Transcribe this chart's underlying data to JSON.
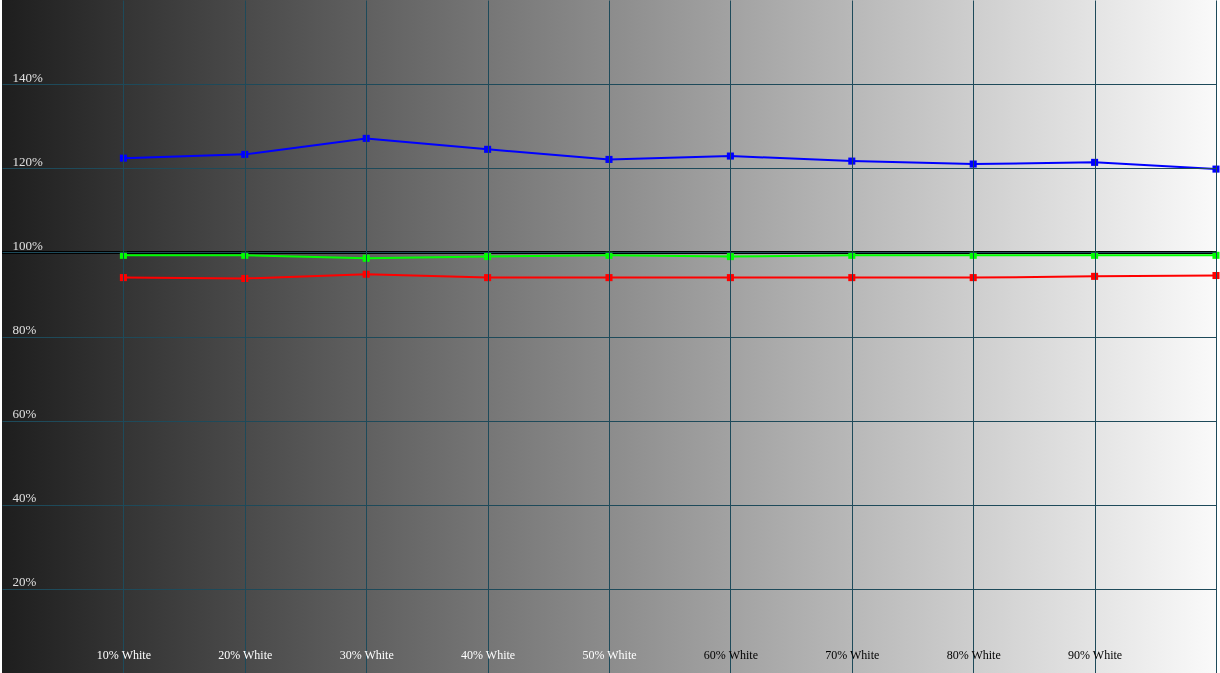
{
  "chart_data": {
    "type": "line",
    "xlim": [
      0,
      100
    ],
    "xticks": [
      {
        "value": 10,
        "label": "10% White"
      },
      {
        "value": 20,
        "label": "20% White"
      },
      {
        "value": 30,
        "label": "30% White"
      },
      {
        "value": 40,
        "label": "40% White"
      },
      {
        "value": 50,
        "label": "50% White"
      },
      {
        "value": 60,
        "label": "60% White"
      },
      {
        "value": 70,
        "label": "70% White"
      },
      {
        "value": 80,
        "label": "80% White"
      },
      {
        "value": 90,
        "label": "90% White"
      },
      {
        "value": 100,
        "label": null
      }
    ],
    "ylim": [
      0,
      160
    ],
    "yticks": [
      {
        "value": 20,
        "label": "20%"
      },
      {
        "value": 40,
        "label": "40%"
      },
      {
        "value": 60,
        "label": "60%"
      },
      {
        "value": 80,
        "label": "80%"
      },
      {
        "value": 100,
        "label": "100%"
      },
      {
        "value": 120,
        "label": "120%"
      },
      {
        "value": 140,
        "label": "140%"
      }
    ],
    "grid": true,
    "marker": "square",
    "x": [
      10,
      20,
      30,
      40,
      50,
      60,
      70,
      80,
      90,
      100
    ],
    "series": [
      {
        "color": "#000000",
        "x": [
          0,
          100
        ],
        "values": [
          100,
          100
        ],
        "marker": "none"
      },
      {
        "color": "#0000ff",
        "values": [
          122.4,
          123.3,
          127.1,
          124.5,
          122.1,
          122.9,
          121.7,
          121.0,
          121.4,
          119.8
        ]
      },
      {
        "color": "#00ff00",
        "values": [
          99.3,
          99.3,
          98.6,
          99.0,
          99.3,
          99.0,
          99.3,
          99.3,
          99.3,
          99.3
        ]
      },
      {
        "color": "#ff0000",
        "values": [
          94.0,
          93.8,
          94.8,
          94.0,
          94.0,
          94.0,
          94.0,
          94.0,
          94.3,
          94.5
        ]
      }
    ]
  }
}
